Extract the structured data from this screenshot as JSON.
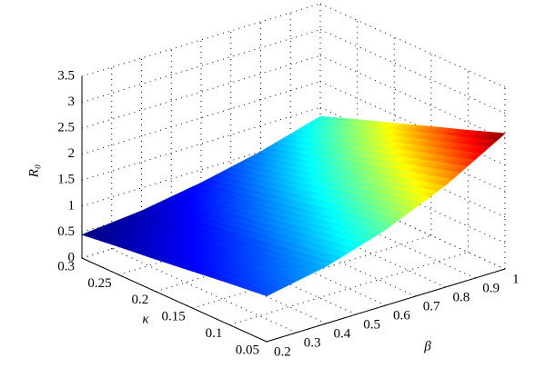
{
  "chart_data": {
    "type": "surface",
    "xlabel": "β",
    "ylabel": "κ",
    "zlabel": "R₀",
    "x": [
      0.2,
      0.4,
      0.6,
      0.8,
      1.0
    ],
    "y": [
      0.05,
      0.1,
      0.15,
      0.2,
      0.25,
      0.3
    ],
    "values": [
      [
        0.88,
        1.1,
        1.46,
        1.96,
        2.61
      ],
      [
        0.8,
        0.99,
        1.32,
        1.77,
        2.35
      ],
      [
        0.71,
        0.88,
        1.17,
        1.58,
        2.1
      ],
      [
        0.62,
        0.78,
        1.03,
        1.39,
        1.84
      ],
      [
        0.54,
        0.67,
        0.89,
        1.19,
        1.59
      ],
      [
        0.45,
        0.56,
        0.75,
        1.0,
        1.33
      ]
    ],
    "colormap": "jet",
    "xlim": [
      0.2,
      1
    ],
    "xticks": [
      0.2,
      0.3,
      0.4,
      0.5,
      0.6,
      0.7,
      0.8,
      0.9,
      1
    ],
    "ylim": [
      0.05,
      0.3
    ],
    "yticks": [
      0.05,
      0.1,
      0.15,
      0.2,
      0.25,
      0.3
    ],
    "zlim": [
      0,
      3.5
    ],
    "zticks": [
      0,
      0.5,
      1,
      1.5,
      2,
      2.5,
      3,
      3.5
    ],
    "grid": true
  }
}
